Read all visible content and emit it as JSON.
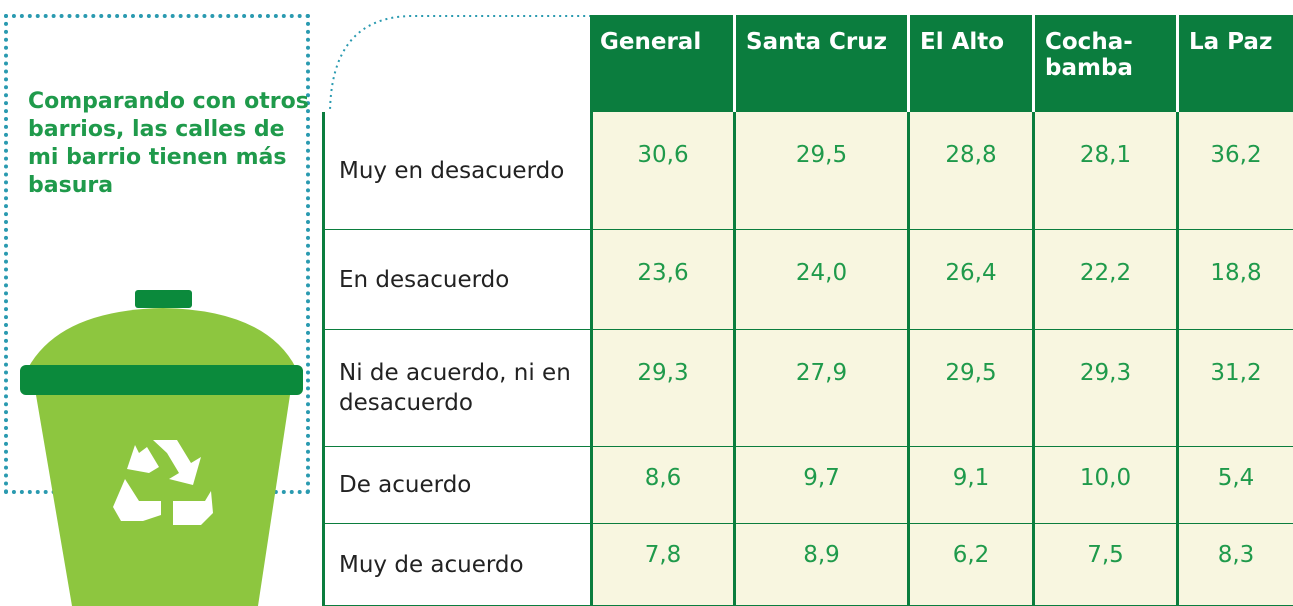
{
  "panel": {
    "title": "Comparando con otros barrios, las calles de mi barrio tienen más basura"
  },
  "table": {
    "header": [
      "General",
      "Santa Cruz",
      "El Alto",
      "Cocha-\nbamba",
      "La Paz"
    ],
    "rows": [
      [
        "Muy en desacuerdo",
        "30,6",
        "29,5",
        "28,8",
        "28,1",
        "36,2"
      ],
      [
        "En desacuerdo",
        "23,6",
        "24,0",
        "26,4",
        "22,2",
        "18,8"
      ],
      [
        "Ni de acuerdo, ni en desacuerdo",
        "29,3",
        "27,9",
        "29,5",
        "29,3",
        "31,2"
      ],
      [
        "De acuerdo",
        "8,6",
        "9,7",
        "9,1",
        "10,0",
        "5,4"
      ],
      [
        "Muy de acuerdo",
        "7,8",
        "8,9",
        "6,2",
        "7,5",
        "8,3"
      ]
    ]
  }
}
